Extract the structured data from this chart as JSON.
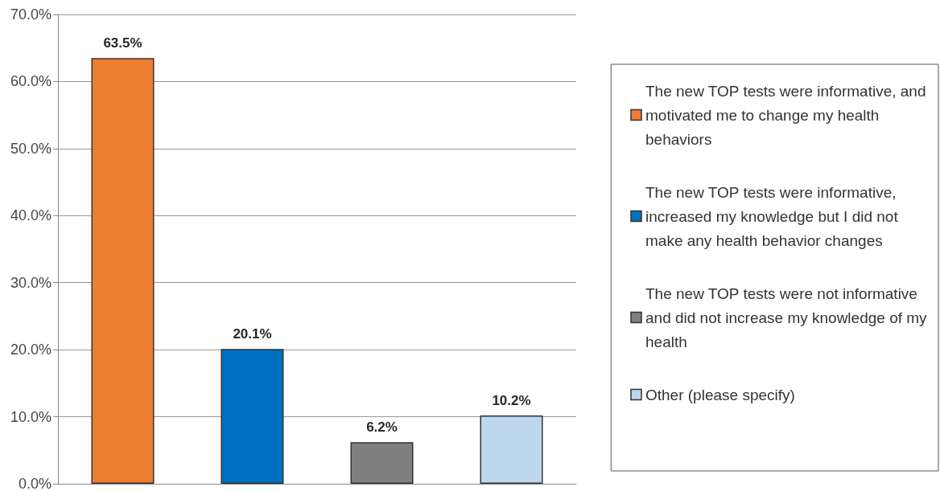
{
  "chart_data": {
    "type": "bar",
    "categories": [
      null,
      null,
      null,
      null
    ],
    "series": [
      {
        "name": "The new TOP tests were informative, and motivated me to change my health behaviors",
        "color": "#ed7d31",
        "values": [
          63.5,
          null,
          null,
          null
        ],
        "value_labels": [
          "63.5%",
          null,
          null,
          null
        ]
      },
      {
        "name": "The new TOP tests were informative, increased my knowledge but I did not make any health behavior changes",
        "color": "#0070c0",
        "values": [
          null,
          20.1,
          null,
          null
        ],
        "value_labels": [
          null,
          "20.1%",
          null,
          null
        ]
      },
      {
        "name": "The new TOP tests were not informative and did not increase my knowledge of my health",
        "color": "#7f7f7f",
        "values": [
          null,
          null,
          6.2,
          null
        ],
        "value_labels": [
          null,
          null,
          "6.2%",
          null
        ]
      },
      {
        "name": "Other (please specify)",
        "color": "#bdd7ee",
        "values": [
          null,
          null,
          null,
          10.2
        ],
        "value_labels": [
          null,
          null,
          null,
          "10.2%"
        ]
      }
    ],
    "ylim": [
      0,
      70
    ],
    "yticks": [
      {
        "value": 0,
        "label": "0.0%"
      },
      {
        "value": 10,
        "label": "10.0%"
      },
      {
        "value": 20,
        "label": "20.0%"
      },
      {
        "value": 30,
        "label": "30.0%"
      },
      {
        "value": 40,
        "label": "40.0%"
      },
      {
        "value": 50,
        "label": "50.0%"
      },
      {
        "value": 60,
        "label": "60.0%"
      },
      {
        "value": 70,
        "label": "70.0%"
      }
    ],
    "grid": "y",
    "legend": "right"
  }
}
